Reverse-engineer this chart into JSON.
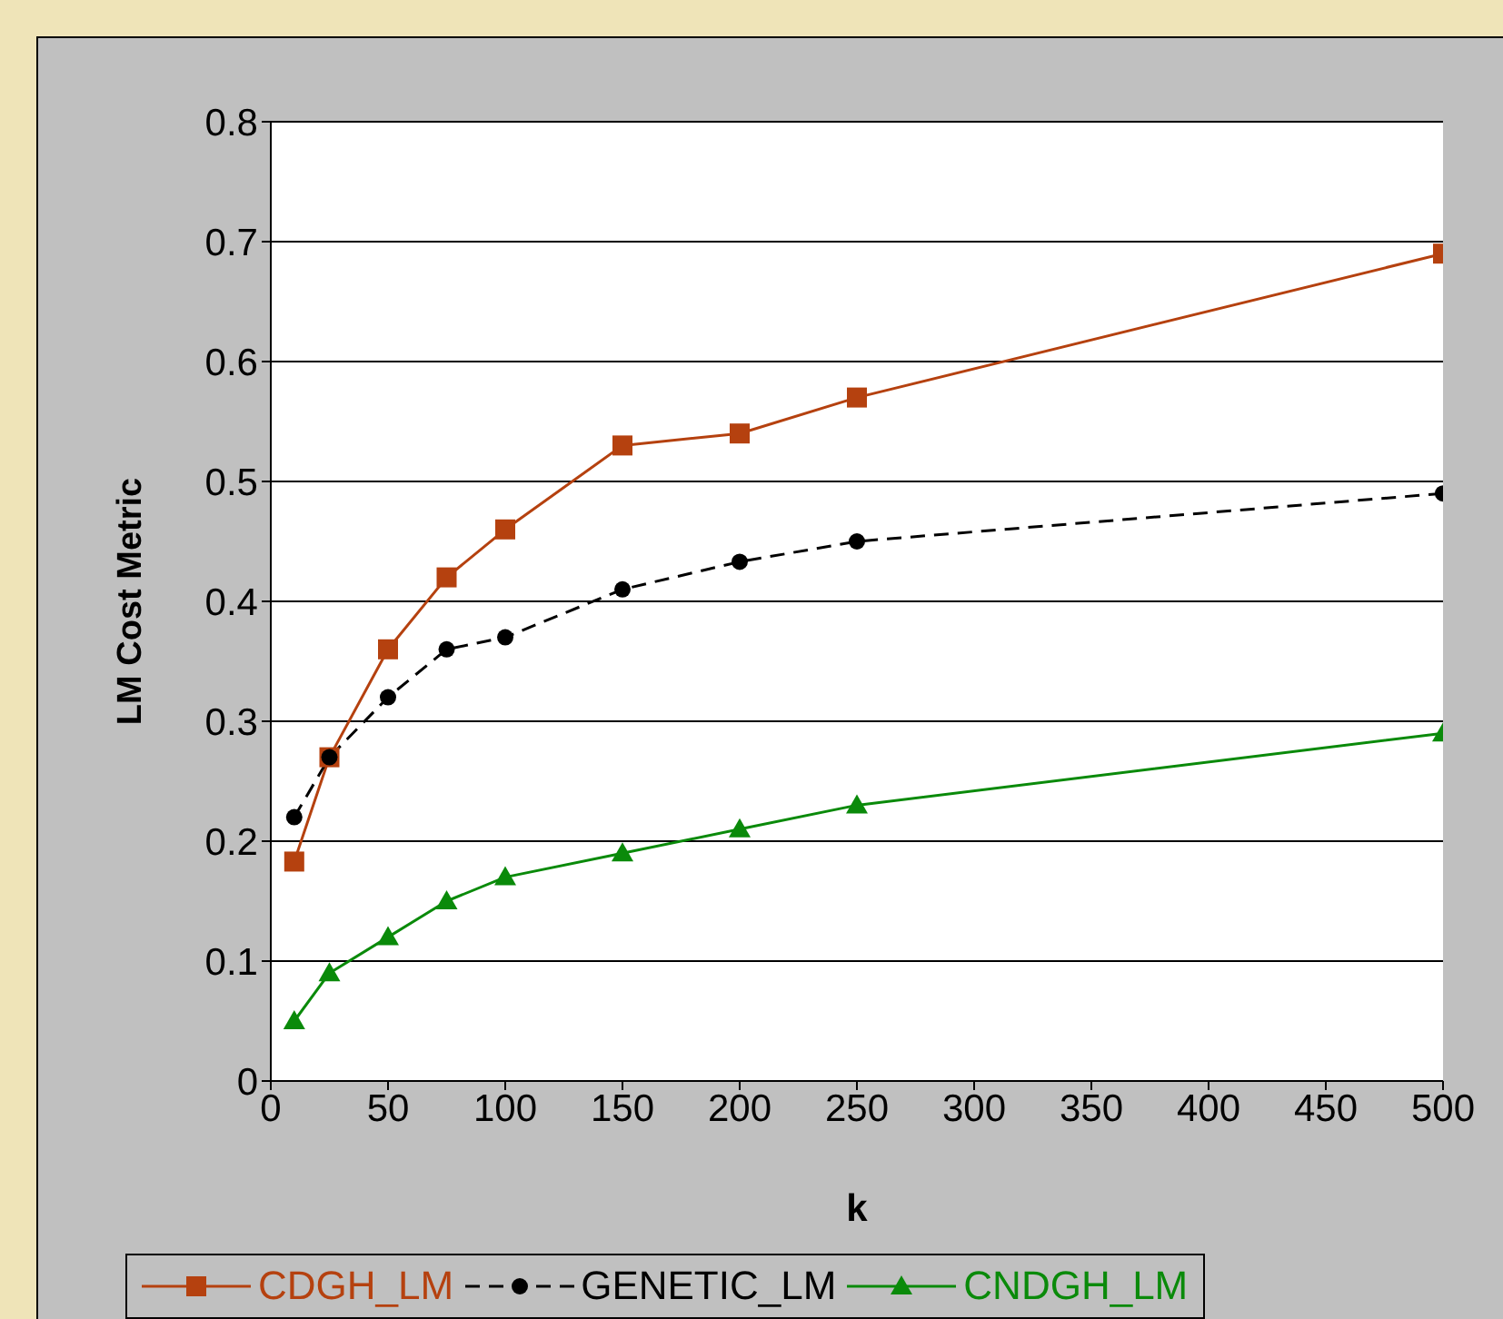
{
  "chart_data": {
    "type": "line",
    "xlabel": "k",
    "ylabel": "LM Cost Metric",
    "x": [
      10,
      25,
      50,
      75,
      100,
      150,
      200,
      250,
      500
    ],
    "series": [
      {
        "name": "CDGH_LM",
        "color": "#b5410f",
        "marker": "square",
        "line_style": "solid",
        "values": [
          0.183,
          0.27,
          0.36,
          0.42,
          0.46,
          0.53,
          0.54,
          0.57,
          0.69
        ]
      },
      {
        "name": "GENETIC_LM",
        "color": "#000000",
        "marker": "circle",
        "line_style": "dashed",
        "values": [
          0.22,
          0.27,
          0.32,
          0.36,
          0.37,
          0.41,
          0.433,
          0.45,
          0.49
        ]
      },
      {
        "name": "CNDGH_LM",
        "color": "#0a8a0a",
        "marker": "triangle",
        "line_style": "solid",
        "values": [
          0.05,
          0.09,
          0.12,
          0.15,
          0.17,
          0.19,
          0.21,
          0.23,
          0.29
        ]
      }
    ],
    "xlim": [
      0,
      500
    ],
    "xticks": [
      0,
      50,
      100,
      150,
      200,
      250,
      300,
      350,
      400,
      450,
      500
    ],
    "ylim": [
      0,
      0.8
    ],
    "yticks": [
      0,
      0.1,
      0.2,
      0.3,
      0.4,
      0.5,
      0.6,
      0.7,
      0.8
    ],
    "grid": "y",
    "legend": "bottom"
  }
}
